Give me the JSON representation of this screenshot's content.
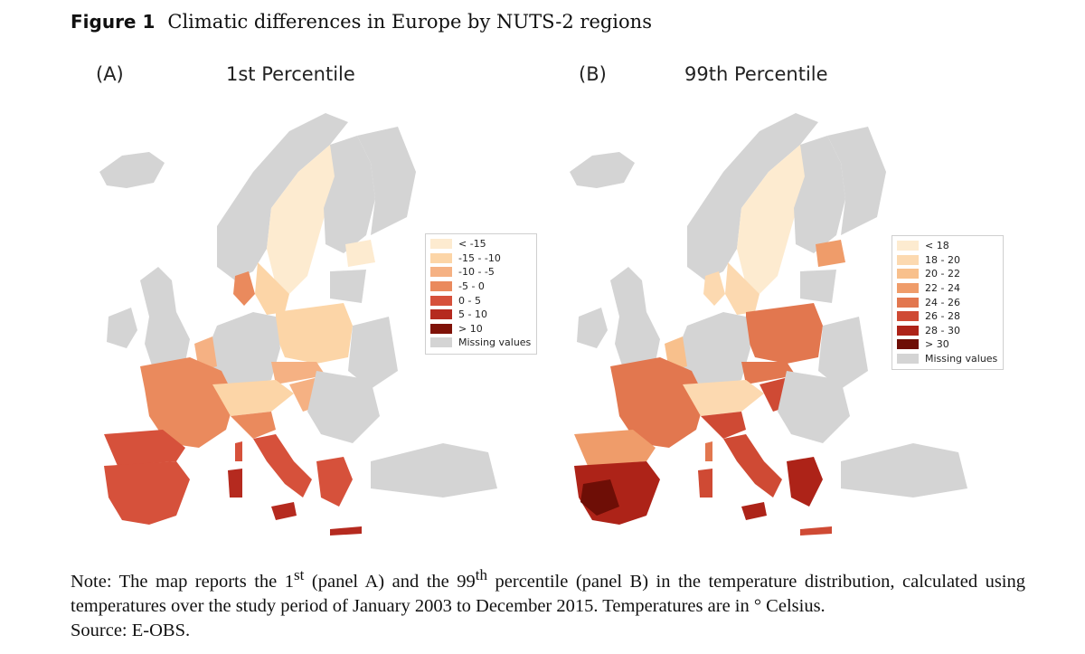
{
  "figure": {
    "label": "Figure 1",
    "title": "Climatic differences in Europe by NUTS-2 regions"
  },
  "panels": [
    {
      "letter": "(A)",
      "title": "1st Percentile",
      "legend": [
        {
          "label": "< -15",
          "color": "#fdebd0"
        },
        {
          "label": "-15 - -10",
          "color": "#fcd5a7"
        },
        {
          "label": "-10 - -5",
          "color": "#f5b183"
        },
        {
          "label": "-5 - 0",
          "color": "#ea8a5d"
        },
        {
          "label": "0 - 5",
          "color": "#d6513b"
        },
        {
          "label": "5 - 10",
          "color": "#b52a1f"
        },
        {
          "label": "> 10",
          "color": "#7f1208"
        },
        {
          "label": "Missing values",
          "color": "#d4d4d4"
        }
      ]
    },
    {
      "letter": "(B)",
      "title": "99th Percentile",
      "legend": [
        {
          "label": "< 18",
          "color": "#fdebd0"
        },
        {
          "label": "18 - 20",
          "color": "#fcd9b0"
        },
        {
          "label": "20 - 22",
          "color": "#f8c08c"
        },
        {
          "label": "22 - 24",
          "color": "#ef9c6a"
        },
        {
          "label": "24 - 26",
          "color": "#e2774f"
        },
        {
          "label": "26 - 28",
          "color": "#cf4a34"
        },
        {
          "label": "28 - 30",
          "color": "#ad2318"
        },
        {
          "label": "> 30",
          "color": "#6e0e06"
        },
        {
          "label": "Missing values",
          "color": "#d4d4d4"
        }
      ]
    }
  ],
  "note": {
    "p1": "Note: The map reports the 1",
    "sup1": "st",
    "p2": " (panel A) and the 99",
    "sup2": "th",
    "p3": " percentile (panel B) in the temperature distribution, calculated using temperatures over the study period of January 2003 to December 2015. Temperatures are in ° Celsius.",
    "source": "Source: E-OBS."
  }
}
